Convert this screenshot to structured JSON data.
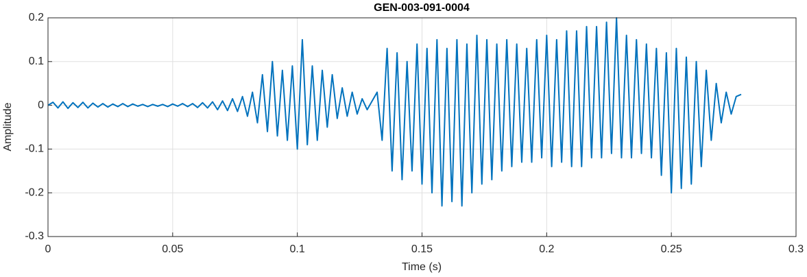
{
  "chart_data": {
    "type": "line",
    "title": "GEN-003-091-0004",
    "xlabel": "Time (s)",
    "ylabel": "Amplitude",
    "color": "#0072bd",
    "grid": true,
    "xlim": [
      0,
      0.3
    ],
    "ylim": [
      -0.3,
      0.2
    ],
    "xticks": [
      0,
      0.05,
      0.1,
      0.15,
      0.2,
      0.25,
      0.3
    ],
    "yticks": [
      -0.3,
      -0.2,
      -0.1,
      0,
      0.1,
      0.2
    ],
    "x": [
      0,
      0.002,
      0.004,
      0.006,
      0.008,
      0.01,
      0.012,
      0.014,
      0.016,
      0.018,
      0.02,
      0.022,
      0.024,
      0.026,
      0.028,
      0.03,
      0.032,
      0.034,
      0.036,
      0.038,
      0.04,
      0.042,
      0.044,
      0.046,
      0.048,
      0.05,
      0.052,
      0.054,
      0.056,
      0.058,
      0.06,
      0.062,
      0.064,
      0.066,
      0.068,
      0.07,
      0.072,
      0.074,
      0.076,
      0.078,
      0.08,
      0.082,
      0.084,
      0.086,
      0.088,
      0.09,
      0.092,
      0.094,
      0.096,
      0.098,
      0.1,
      0.102,
      0.104,
      0.106,
      0.108,
      0.11,
      0.112,
      0.114,
      0.116,
      0.118,
      0.12,
      0.122,
      0.124,
      0.126,
      0.128,
      0.13,
      0.132,
      0.134,
      0.136,
      0.138,
      0.14,
      0.142,
      0.144,
      0.146,
      0.148,
      0.15,
      0.152,
      0.154,
      0.156,
      0.158,
      0.16,
      0.162,
      0.164,
      0.166,
      0.168,
      0.17,
      0.172,
      0.174,
      0.176,
      0.178,
      0.18,
      0.182,
      0.184,
      0.186,
      0.188,
      0.19,
      0.192,
      0.194,
      0.196,
      0.198,
      0.2,
      0.202,
      0.204,
      0.206,
      0.208,
      0.21,
      0.212,
      0.214,
      0.216,
      0.218,
      0.22,
      0.222,
      0.224,
      0.226,
      0.228,
      0.23,
      0.232,
      0.234,
      0.236,
      0.238,
      0.24,
      0.242,
      0.244,
      0.246,
      0.248,
      0.25,
      0.252,
      0.254,
      0.256,
      0.258,
      0.26,
      0.262,
      0.264,
      0.266,
      0.268,
      0.27,
      0.272,
      0.274,
      0.276,
      0.278
    ],
    "values": [
      0,
      0.007,
      -0.006,
      0.008,
      -0.007,
      0.006,
      -0.005,
      0.007,
      -0.006,
      0.005,
      -0.004,
      0.004,
      -0.004,
      0.003,
      -0.003,
      0.004,
      -0.003,
      0.003,
      -0.002,
      0.002,
      -0.003,
      0.002,
      -0.002,
      0.002,
      -0.003,
      0.003,
      -0.002,
      0.004,
      -0.003,
      0.004,
      -0.005,
      0.006,
      -0.006,
      0.008,
      -0.01,
      0.01,
      -0.012,
      0.015,
      -0.014,
      0.02,
      -0.025,
      0.03,
      -0.04,
      0.07,
      -0.06,
      0.1,
      -0.07,
      0.08,
      -0.08,
      0.09,
      -0.1,
      0.15,
      -0.09,
      0.09,
      -0.08,
      0.08,
      -0.05,
      0.07,
      -0.03,
      0.04,
      -0.025,
      0.03,
      -0.02,
      0.015,
      -0.01,
      0.01,
      0.03,
      -0.08,
      0.13,
      -0.15,
      0.12,
      -0.17,
      0.1,
      -0.15,
      0.14,
      -0.18,
      0.13,
      -0.2,
      0.15,
      -0.23,
      0.13,
      -0.22,
      0.15,
      -0.23,
      0.14,
      -0.2,
      0.16,
      -0.18,
      0.15,
      -0.17,
      0.14,
      -0.15,
      0.15,
      -0.14,
      0.14,
      -0.13,
      0.13,
      -0.13,
      0.15,
      -0.12,
      0.16,
      -0.14,
      0.15,
      -0.13,
      0.17,
      -0.14,
      0.17,
      -0.14,
      0.18,
      -0.12,
      0.18,
      -0.12,
      0.19,
      -0.11,
      0.2,
      -0.12,
      0.16,
      -0.12,
      0.15,
      -0.11,
      0.14,
      -0.12,
      0.13,
      -0.16,
      0.12,
      -0.2,
      0.13,
      -0.19,
      0.11,
      -0.18,
      0.1,
      -0.14,
      0.08,
      -0.08,
      0.05,
      -0.04,
      0.03,
      -0.02,
      0.02,
      0.025
    ]
  }
}
